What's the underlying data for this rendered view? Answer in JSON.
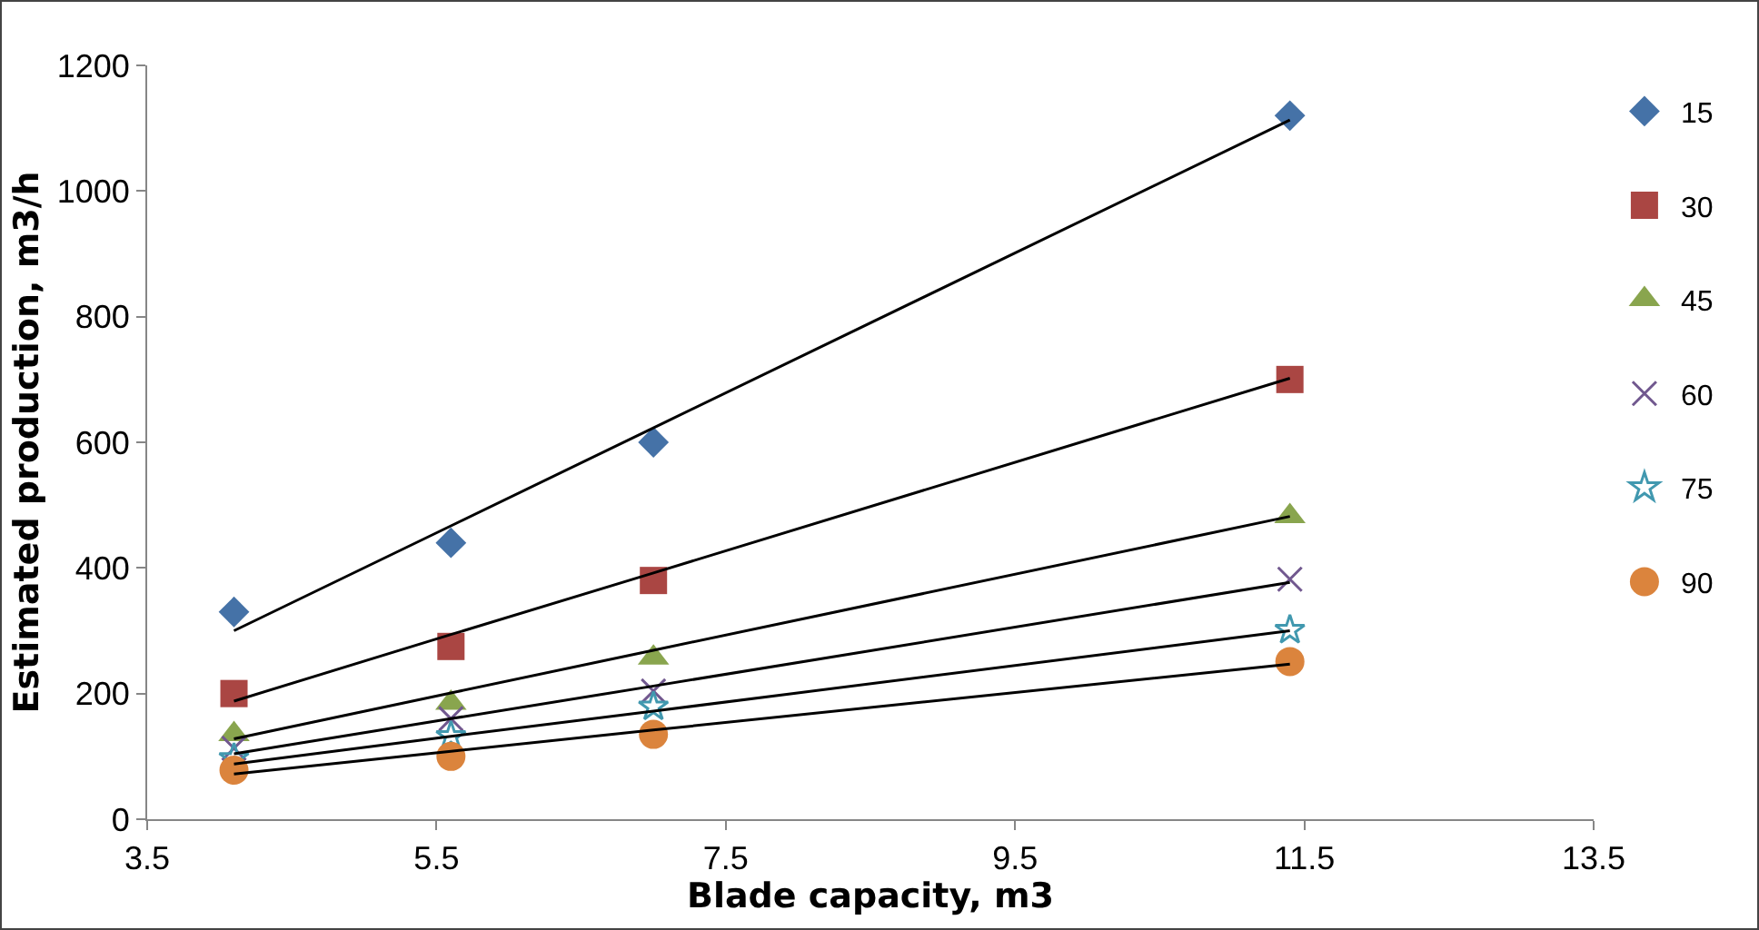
{
  "chart_data": {
    "type": "scatter",
    "xlabel": "Blade capacity, m3",
    "ylabel": "Estimated production, m3/h",
    "x": [
      4.1,
      5.6,
      7.0,
      11.4
    ],
    "xlim": [
      3.5,
      13.5
    ],
    "xticks": [
      3.5,
      5.5,
      7.5,
      9.5,
      11.5,
      13.5
    ],
    "ylim": [
      0,
      1200
    ],
    "yticks": [
      0,
      200,
      400,
      600,
      800,
      1000,
      1200
    ],
    "grid": false,
    "legend": "right",
    "series": [
      {
        "name": "15",
        "color": "#4572a7",
        "marker": "diamond",
        "values": [
          330,
          440,
          600,
          1120
        ]
      },
      {
        "name": "30",
        "color": "#aa4643",
        "marker": "square",
        "values": [
          200,
          275,
          380,
          700
        ]
      },
      {
        "name": "45",
        "color": "#89a54e",
        "marker": "triangle",
        "values": [
          135,
          185,
          257,
          482
        ]
      },
      {
        "name": "60",
        "color": "#71588f",
        "marker": "cross",
        "values": [
          113,
          160,
          204,
          382
        ]
      },
      {
        "name": "75",
        "color": "#4198af",
        "marker": "star",
        "values": [
          97,
          132,
          179,
          301
        ]
      },
      {
        "name": "90",
        "color": "#db843d",
        "marker": "circle",
        "values": [
          78,
          100,
          135,
          251
        ]
      },
      {
        "type": "line",
        "color": "#000000",
        "values": [
          300,
          467,
          623,
          1113
        ]
      },
      {
        "type": "line",
        "color": "#000000",
        "values": [
          188,
          294,
          392,
          702
        ]
      },
      {
        "type": "line",
        "color": "#000000",
        "values": [
          128,
          201,
          269,
          482
        ]
      },
      {
        "type": "line",
        "color": "#000000",
        "values": [
          104,
          160,
          212,
          377
        ]
      },
      {
        "type": "line",
        "color": "#000000",
        "values": [
          88,
          132,
          172,
          300
        ]
      },
      {
        "type": "line",
        "color": "#000000",
        "values": [
          72,
          108,
          142,
          247
        ]
      }
    ]
  }
}
